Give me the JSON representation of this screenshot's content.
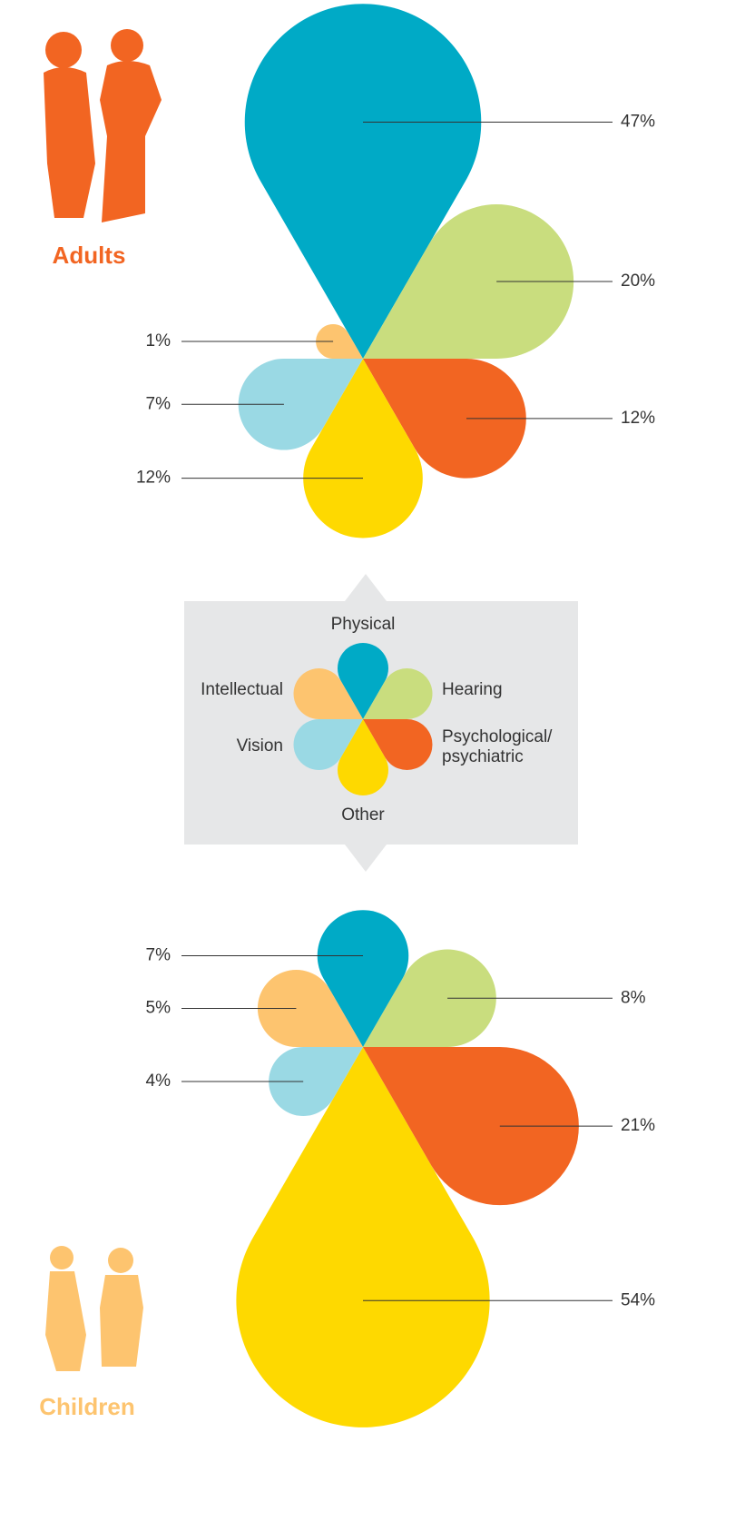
{
  "chart_data": [
    {
      "type": "petal",
      "title": "Adults",
      "categories": [
        "Physical",
        "Hearing",
        "Psychological/ psychiatric",
        "Other",
        "Vision",
        "Intellectual"
      ],
      "colors": [
        "#00aac6",
        "#c9dd7e",
        "#f26522",
        "#fed900",
        "#9ad9e4",
        "#fdc46f"
      ],
      "values": [
        47,
        20,
        12,
        12,
        7,
        1
      ],
      "value_labels": [
        "47%",
        "20%",
        "12%",
        "12%",
        "7%",
        "1%"
      ]
    },
    {
      "type": "petal",
      "title": "Children",
      "categories": [
        "Physical",
        "Hearing",
        "Psychological/ psychiatric",
        "Other",
        "Vision",
        "Intellectual"
      ],
      "colors": [
        "#00aac6",
        "#c9dd7e",
        "#f26522",
        "#fed900",
        "#9ad9e4",
        "#fdc46f"
      ],
      "values": [
        7,
        8,
        21,
        54,
        4,
        5
      ],
      "value_labels": [
        "7%",
        "8%",
        "21%",
        "54%",
        "4%",
        "5%"
      ]
    }
  ]
}
